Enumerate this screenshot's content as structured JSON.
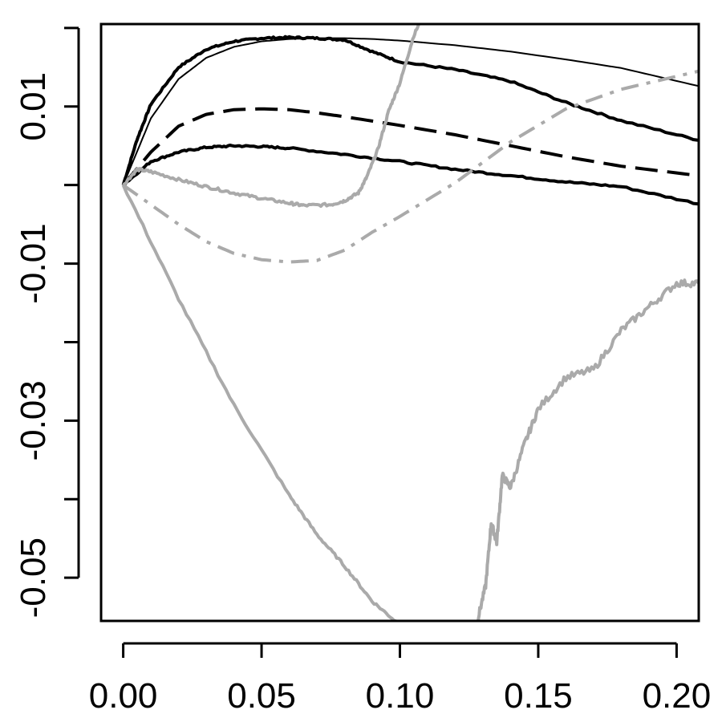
{
  "chart_data": {
    "type": "line",
    "title": "",
    "xlabel": "",
    "ylabel": "",
    "xlim": [
      -0.008,
      0.208
    ],
    "ylim": [
      -0.0555,
      0.0205
    ],
    "x_ticks": [
      0.0,
      0.05,
      0.1,
      0.15,
      0.2
    ],
    "x_tick_labels": [
      "0.00",
      "0.05",
      "0.10",
      "0.15",
      "0.20"
    ],
    "y_ticks": [
      -0.05,
      -0.04,
      -0.03,
      -0.02,
      -0.01,
      0.0,
      0.01,
      0.02
    ],
    "y_tick_labels": [
      "-0.05",
      "",
      "-0.03",
      "",
      "-0.01",
      "",
      "0.01",
      ""
    ],
    "grid": false,
    "legend": "none",
    "series": [
      {
        "color": "#000000",
        "style": "solid",
        "width": 2,
        "x": [
          0.0,
          0.01,
          0.02,
          0.03,
          0.04,
          0.05,
          0.06,
          0.07,
          0.08,
          0.09,
          0.1,
          0.12,
          0.14,
          0.16,
          0.18,
          0.208
        ],
        "y": [
          0.0,
          0.0085,
          0.0135,
          0.0162,
          0.0176,
          0.0183,
          0.0186,
          0.0187,
          0.0187,
          0.0186,
          0.0184,
          0.0178,
          0.017,
          0.016,
          0.0149,
          0.0126
        ]
      },
      {
        "color": "#000000",
        "style": "solid",
        "width": 4,
        "noisy": true,
        "x": [
          0.0,
          0.005,
          0.01,
          0.02,
          0.03,
          0.04,
          0.05,
          0.06,
          0.07,
          0.08,
          0.09,
          0.1,
          0.12,
          0.14,
          0.16,
          0.18,
          0.208
        ],
        "y": [
          0.0,
          0.0058,
          0.0103,
          0.015,
          0.0173,
          0.0183,
          0.0187,
          0.0188,
          0.0187,
          0.0185,
          0.017,
          0.0157,
          0.0147,
          0.0132,
          0.0105,
          0.0082,
          0.0057
        ]
      },
      {
        "color": "#000000",
        "style": "dashed",
        "width": 4,
        "x": [
          0.0,
          0.01,
          0.02,
          0.03,
          0.04,
          0.05,
          0.06,
          0.07,
          0.08,
          0.1,
          0.12,
          0.14,
          0.16,
          0.18,
          0.208
        ],
        "y": [
          0.0,
          0.0042,
          0.0075,
          0.009,
          0.0096,
          0.0097,
          0.0096,
          0.0092,
          0.0087,
          0.0076,
          0.0064,
          0.005,
          0.0036,
          0.0024,
          0.0012
        ]
      },
      {
        "color": "#000000",
        "style": "solid",
        "width": 4,
        "noisy": true,
        "x": [
          0.0,
          0.01,
          0.02,
          0.03,
          0.04,
          0.05,
          0.06,
          0.08,
          0.1,
          0.12,
          0.14,
          0.16,
          0.18,
          0.208
        ],
        "y": [
          0.0,
          0.003,
          0.0042,
          0.0048,
          0.005,
          0.0049,
          0.0047,
          0.0039,
          0.003,
          0.002,
          0.0012,
          0.0004,
          -0.0002,
          -0.0024
        ]
      },
      {
        "color": "#aaaaaa",
        "style": "solid",
        "width": 4,
        "noisy": true,
        "x": [
          0.0,
          0.005,
          0.01,
          0.02,
          0.03,
          0.04,
          0.05,
          0.06,
          0.065,
          0.075,
          0.08,
          0.085,
          0.088,
          0.092,
          0.096,
          0.1,
          0.105,
          0.11
        ],
        "y": [
          0.0,
          0.002,
          0.0017,
          0.0007,
          -0.0002,
          -0.001,
          -0.0017,
          -0.0023,
          -0.0026,
          -0.0025,
          -0.002,
          -0.001,
          0.001,
          0.0045,
          0.0095,
          0.013,
          0.019,
          0.023
        ]
      },
      {
        "color": "#aaaaaa",
        "style": "dashdot",
        "width": 4,
        "x": [
          0.0,
          0.01,
          0.02,
          0.03,
          0.04,
          0.05,
          0.06,
          0.07,
          0.08,
          0.09,
          0.1,
          0.12,
          0.14,
          0.16,
          0.18,
          0.208
        ],
        "y": [
          0.0,
          -0.0025,
          -0.005,
          -0.0072,
          -0.0087,
          -0.0095,
          -0.0098,
          -0.0096,
          -0.0083,
          -0.006,
          -0.004,
          0.0003,
          0.0055,
          0.0097,
          0.0122,
          0.0145
        ]
      },
      {
        "color": "#aaaaaa",
        "style": "solid",
        "width": 4,
        "noisy": true,
        "x": [
          0.0,
          0.02,
          0.04,
          0.06,
          0.07,
          0.08,
          0.09,
          0.1
        ],
        "y": [
          0.0,
          -0.0145,
          -0.028,
          -0.0395,
          -0.0445,
          -0.0485,
          -0.053,
          -0.056
        ]
      },
      {
        "color": "#aaaaaa",
        "style": "solid",
        "width": 4,
        "noisy": true,
        "stepped": true,
        "x": [
          0.128,
          0.131,
          0.133,
          0.135,
          0.137,
          0.14,
          0.145,
          0.15,
          0.16,
          0.17,
          0.18,
          0.19,
          0.2,
          0.208
        ],
        "y": [
          -0.0555,
          -0.051,
          -0.043,
          -0.0455,
          -0.037,
          -0.0385,
          -0.033,
          -0.0285,
          -0.0245,
          -0.0235,
          -0.0185,
          -0.0155,
          -0.0125,
          -0.0125
        ]
      }
    ]
  }
}
